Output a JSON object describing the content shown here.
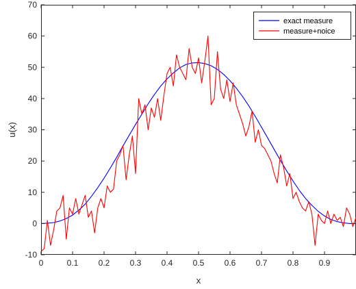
{
  "chart_data": {
    "type": "line",
    "title": "",
    "xlabel": "x",
    "ylabel": "u(x)",
    "xlim": [
      0,
      1
    ],
    "ylim": [
      -10,
      70
    ],
    "x_ticks": [
      0,
      0.1,
      0.2,
      0.3,
      0.4,
      0.5,
      0.6,
      0.7,
      0.8,
      0.9
    ],
    "x_tick_labels": [
      "0",
      "0.1",
      "0.2",
      "0.3",
      "0.4",
      "0.5",
      "0.6",
      "0.7",
      "0.8",
      "0.9"
    ],
    "y_ticks": [
      -10,
      0,
      10,
      20,
      30,
      40,
      50,
      60,
      70
    ],
    "y_tick_labels": [
      "-10",
      "0",
      "10",
      "20",
      "30",
      "40",
      "50",
      "60",
      "70"
    ],
    "grid": false,
    "legend_position": "top-right",
    "series": [
      {
        "name": "exact measure",
        "color": "#0000ff",
        "x": [
          0,
          0.02,
          0.04,
          0.06,
          0.08,
          0.1,
          0.12,
          0.14,
          0.16,
          0.18,
          0.2,
          0.22,
          0.24,
          0.26,
          0.28,
          0.3,
          0.32,
          0.34,
          0.36,
          0.38,
          0.4,
          0.42,
          0.44,
          0.46,
          0.48,
          0.5,
          0.52,
          0.54,
          0.56,
          0.58,
          0.6,
          0.62,
          0.64,
          0.66,
          0.68,
          0.7,
          0.72,
          0.74,
          0.76,
          0.78,
          0.8,
          0.82,
          0.84,
          0.86,
          0.88,
          0.9,
          0.92,
          0.94,
          0.96,
          0.98,
          1.0
        ],
        "y": [
          0,
          0.1,
          0.3,
          0.8,
          1.6,
          2.7,
          4.3,
          6.2,
          8.7,
          11.5,
          14.5,
          17.8,
          21.2,
          24.8,
          28.3,
          31.7,
          35.0,
          38.3,
          41.3,
          44.0,
          46.3,
          48.2,
          49.8,
          50.9,
          51.4,
          51.5,
          51.2,
          50.5,
          49.3,
          47.7,
          45.7,
          43.3,
          40.6,
          37.6,
          34.3,
          30.8,
          27.3,
          23.7,
          20.2,
          16.8,
          13.6,
          10.6,
          8.0,
          5.8,
          3.9,
          2.4,
          1.3,
          0.6,
          0.2,
          0.0,
          0
        ]
      },
      {
        "name": "measure+noice",
        "color": "#ff0000",
        "x": [
          0,
          0.01,
          0.02,
          0.03,
          0.04,
          0.05,
          0.06,
          0.07,
          0.08,
          0.09,
          0.1,
          0.11,
          0.12,
          0.13,
          0.14,
          0.15,
          0.16,
          0.17,
          0.18,
          0.19,
          0.2,
          0.21,
          0.22,
          0.23,
          0.24,
          0.25,
          0.26,
          0.27,
          0.28,
          0.29,
          0.3,
          0.31,
          0.32,
          0.33,
          0.34,
          0.35,
          0.36,
          0.37,
          0.38,
          0.39,
          0.4,
          0.41,
          0.42,
          0.43,
          0.44,
          0.45,
          0.46,
          0.47,
          0.48,
          0.49,
          0.5,
          0.51,
          0.52,
          0.53,
          0.54,
          0.55,
          0.56,
          0.57,
          0.58,
          0.59,
          0.6,
          0.61,
          0.62,
          0.63,
          0.64,
          0.65,
          0.66,
          0.67,
          0.68,
          0.69,
          0.7,
          0.71,
          0.72,
          0.73,
          0.74,
          0.75,
          0.76,
          0.77,
          0.78,
          0.79,
          0.8,
          0.81,
          0.82,
          0.83,
          0.84,
          0.85,
          0.86,
          0.87,
          0.88,
          0.89,
          0.9,
          0.91,
          0.92,
          0.93,
          0.94,
          0.95,
          0.96,
          0.97,
          0.98,
          0.99,
          1.0
        ],
        "y": [
          -9,
          -8,
          1,
          -7,
          -2,
          4,
          5,
          9,
          -5,
          5,
          3,
          8,
          3,
          6,
          9,
          2,
          4,
          -3,
          5,
          8,
          5,
          12,
          10,
          11,
          20,
          22,
          25,
          14,
          22,
          28,
          16,
          40,
          35,
          38,
          30,
          37,
          34,
          40,
          33,
          41,
          48,
          50,
          44,
          54,
          50,
          48,
          46,
          56,
          50,
          48,
          53,
          45,
          52,
          60,
          38,
          40,
          55,
          43,
          40,
          46,
          39,
          45,
          38,
          35,
          32,
          28,
          31,
          36,
          26,
          30,
          25,
          24,
          22,
          20,
          16,
          13,
          22,
          18,
          12,
          16,
          8,
          10,
          7,
          5,
          4,
          7,
          3,
          -7,
          3,
          1,
          0,
          4,
          0,
          3,
          1,
          2,
          -1,
          5,
          3,
          -1,
          2
        ]
      }
    ]
  }
}
